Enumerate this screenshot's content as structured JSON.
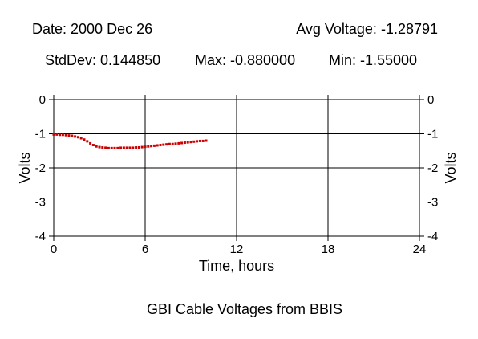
{
  "header": {
    "date": "Date: 2000 Dec 26",
    "avg": "Avg Voltage: -1.28791",
    "stddev": "StdDev: 0.144850",
    "max": "Max: -0.880000",
    "min": "Min: -1.55000"
  },
  "chart_data": {
    "type": "scatter",
    "title": "GBI Cable Voltages from BBIS",
    "xlabel": "Time, hours",
    "ylabel": "Volts",
    "xlim": [
      0,
      24
    ],
    "ylim": [
      -4,
      0
    ],
    "xticks": [
      0,
      6,
      12,
      18,
      24
    ],
    "yticks": [
      0,
      -1,
      -2,
      -3,
      -4
    ],
    "xtick_labels": [
      "0",
      "6",
      "12",
      "18",
      "24"
    ],
    "ytick_labels": [
      "0",
      "-1",
      "-2",
      "-3",
      "-4"
    ],
    "grid": true,
    "marker_color": "#cc0000",
    "points": [
      [
        0.0,
        -1.02
      ],
      [
        0.2,
        -1.02
      ],
      [
        0.4,
        -1.03
      ],
      [
        0.6,
        -1.03
      ],
      [
        0.8,
        -1.04
      ],
      [
        1.0,
        -1.05
      ],
      [
        1.2,
        -1.06
      ],
      [
        1.4,
        -1.08
      ],
      [
        1.6,
        -1.1
      ],
      [
        1.8,
        -1.13
      ],
      [
        2.0,
        -1.17
      ],
      [
        2.2,
        -1.22
      ],
      [
        2.4,
        -1.28
      ],
      [
        2.6,
        -1.33
      ],
      [
        2.8,
        -1.37
      ],
      [
        3.0,
        -1.39
      ],
      [
        3.2,
        -1.4
      ],
      [
        3.4,
        -1.41
      ],
      [
        3.6,
        -1.42
      ],
      [
        3.8,
        -1.42
      ],
      [
        4.0,
        -1.42
      ],
      [
        4.2,
        -1.42
      ],
      [
        4.4,
        -1.41
      ],
      [
        4.6,
        -1.41
      ],
      [
        4.8,
        -1.41
      ],
      [
        5.0,
        -1.41
      ],
      [
        5.2,
        -1.41
      ],
      [
        5.4,
        -1.4
      ],
      [
        5.6,
        -1.4
      ],
      [
        5.8,
        -1.39
      ],
      [
        6.0,
        -1.38
      ],
      [
        6.2,
        -1.37
      ],
      [
        6.4,
        -1.36
      ],
      [
        6.6,
        -1.35
      ],
      [
        6.8,
        -1.34
      ],
      [
        7.0,
        -1.33
      ],
      [
        7.2,
        -1.32
      ],
      [
        7.4,
        -1.31
      ],
      [
        7.6,
        -1.3
      ],
      [
        7.8,
        -1.3
      ],
      [
        8.0,
        -1.29
      ],
      [
        8.2,
        -1.28
      ],
      [
        8.4,
        -1.27
      ],
      [
        8.6,
        -1.26
      ],
      [
        8.8,
        -1.25
      ],
      [
        9.0,
        -1.24
      ],
      [
        9.2,
        -1.23
      ],
      [
        9.4,
        -1.22
      ],
      [
        9.6,
        -1.21
      ],
      [
        9.8,
        -1.21
      ],
      [
        10.0,
        -1.2
      ]
    ]
  }
}
